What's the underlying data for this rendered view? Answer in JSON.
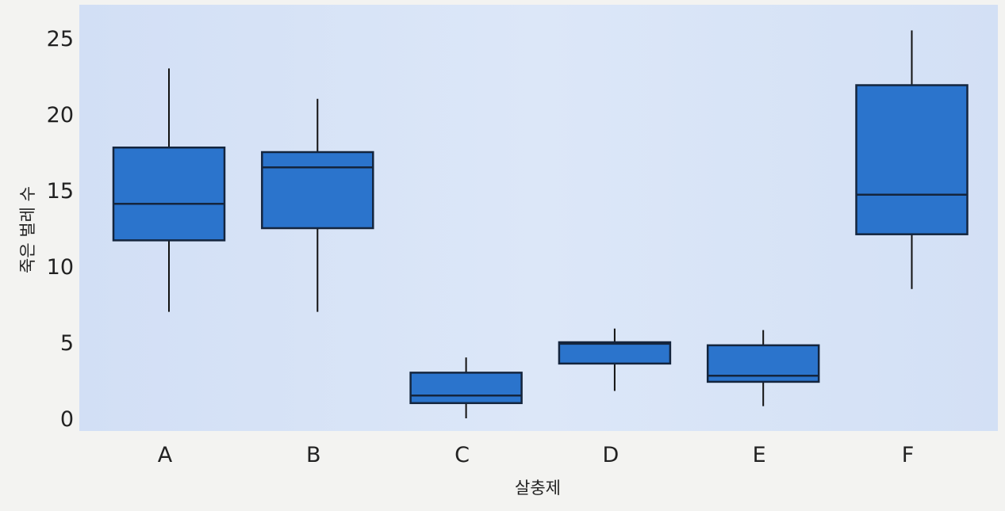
{
  "chart_data": {
    "type": "box",
    "xlabel": "살충제",
    "ylabel": "죽은 벌레 수",
    "ylim": [
      0,
      26
    ],
    "yticks": [
      0,
      5,
      10,
      15,
      20,
      25
    ],
    "categories": [
      "A",
      "B",
      "C",
      "D",
      "E",
      "F"
    ],
    "boxes": [
      {
        "label": "A",
        "min": 7.0,
        "q1": 11.7,
        "median": 14.1,
        "q3": 17.8,
        "max": 23.0
      },
      {
        "label": "B",
        "min": 7.0,
        "q1": 12.5,
        "median": 16.5,
        "q3": 17.5,
        "max": 21.0
      },
      {
        "label": "C",
        "min": 0.0,
        "q1": 1.0,
        "median": 1.5,
        "q3": 3.0,
        "max": 4.0
      },
      {
        "label": "D",
        "min": 1.8,
        "q1": 3.6,
        "median": 4.9,
        "q3": 5.0,
        "max": 5.9
      },
      {
        "label": "E",
        "min": 0.8,
        "q1": 2.4,
        "median": 2.8,
        "q3": 4.8,
        "max": 5.8
      },
      {
        "label": "F",
        "min": 8.5,
        "q1": 12.1,
        "median": 14.7,
        "q3": 21.9,
        "max": 25.5
      }
    ],
    "colors": {
      "box_fill": "#2b74cc",
      "box_stroke": "#14253d",
      "plot_background": "#dbe6f8",
      "whisker": "#111111"
    },
    "grid": false,
    "legend": "none"
  }
}
